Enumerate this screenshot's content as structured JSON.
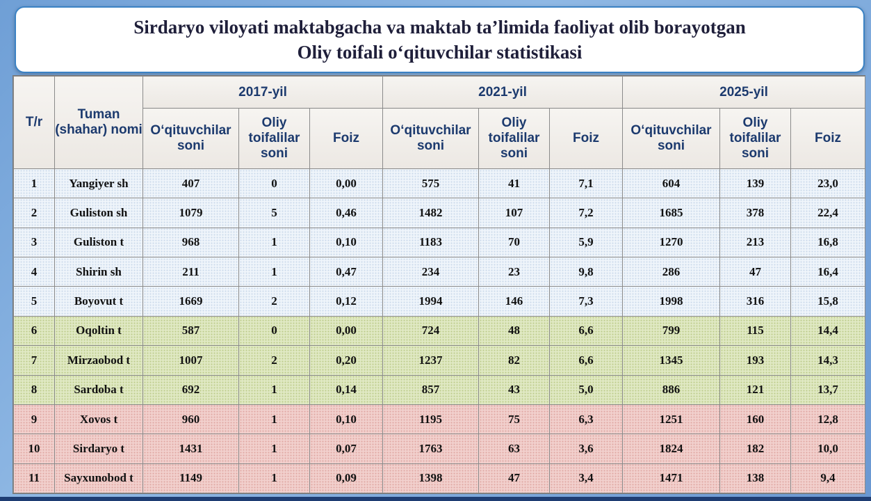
{
  "title": {
    "line1": "Sirdaryo viloyati maktabgacha va maktab ta’limida faoliyat olib borayotgan",
    "line2": "Oliy toifali o‘qituvchilar statistikasi"
  },
  "table": {
    "headers": {
      "tr": "T/r",
      "district": "Tuman (shahar) nomi",
      "years": [
        "2017-yil",
        "2021-yil",
        "2025-yil"
      ],
      "sub": [
        "O‘qituvchilar soni",
        "Oliy toifalilar soni",
        "Foiz"
      ]
    },
    "rows": [
      {
        "n": "1",
        "name": "Yangiyer sh",
        "group": "blue",
        "y2017": [
          "407",
          "0",
          "0,00"
        ],
        "y2021": [
          "575",
          "41",
          "7,1"
        ],
        "y2025": [
          "604",
          "139",
          "23,0"
        ]
      },
      {
        "n": "2",
        "name": "Guliston sh",
        "group": "blue",
        "y2017": [
          "1079",
          "5",
          "0,46"
        ],
        "y2021": [
          "1482",
          "107",
          "7,2"
        ],
        "y2025": [
          "1685",
          "378",
          "22,4"
        ]
      },
      {
        "n": "3",
        "name": "Guliston t",
        "group": "blue",
        "y2017": [
          "968",
          "1",
          "0,10"
        ],
        "y2021": [
          "1183",
          "70",
          "5,9"
        ],
        "y2025": [
          "1270",
          "213",
          "16,8"
        ]
      },
      {
        "n": "4",
        "name": "Shirin sh",
        "group": "blue",
        "y2017": [
          "211",
          "1",
          "0,47"
        ],
        "y2021": [
          "234",
          "23",
          "9,8"
        ],
        "y2025": [
          "286",
          "47",
          "16,4"
        ]
      },
      {
        "n": "5",
        "name": "Boyovut t",
        "group": "blue",
        "y2017": [
          "1669",
          "2",
          "0,12"
        ],
        "y2021": [
          "1994",
          "146",
          "7,3"
        ],
        "y2025": [
          "1998",
          "316",
          "15,8"
        ]
      },
      {
        "n": "6",
        "name": "Oqoltin t",
        "group": "green",
        "y2017": [
          "587",
          "0",
          "0,00"
        ],
        "y2021": [
          "724",
          "48",
          "6,6"
        ],
        "y2025": [
          "799",
          "115",
          "14,4"
        ]
      },
      {
        "n": "7",
        "name": "Mirzaobod t",
        "group": "green",
        "y2017": [
          "1007",
          "2",
          "0,20"
        ],
        "y2021": [
          "1237",
          "82",
          "6,6"
        ],
        "y2025": [
          "1345",
          "193",
          "14,3"
        ]
      },
      {
        "n": "8",
        "name": "Sardoba t",
        "group": "green",
        "y2017": [
          "692",
          "1",
          "0,14"
        ],
        "y2021": [
          "857",
          "43",
          "5,0"
        ],
        "y2025": [
          "886",
          "121",
          "13,7"
        ]
      },
      {
        "n": "9",
        "name": "Xovos t",
        "group": "red",
        "y2017": [
          "960",
          "1",
          "0,10"
        ],
        "y2021": [
          "1195",
          "75",
          "6,3"
        ],
        "y2025": [
          "1251",
          "160",
          "12,8"
        ]
      },
      {
        "n": "10",
        "name": "Sirdaryo t",
        "group": "red",
        "y2017": [
          "1431",
          "1",
          "0,07"
        ],
        "y2021": [
          "1763",
          "63",
          "3,6"
        ],
        "y2025": [
          "1824",
          "182",
          "10,0"
        ]
      },
      {
        "n": "11",
        "name": "Sayxunobod t",
        "group": "red",
        "y2017": [
          "1149",
          "1",
          "0,09"
        ],
        "y2021": [
          "1398",
          "47",
          "3,4"
        ],
        "y2025": [
          "1471",
          "138",
          "9,4"
        ]
      }
    ]
  },
  "colors": {
    "header_text": "#1c3a6e",
    "title_border": "#3b82c4",
    "group_blue": "#eef4fa",
    "group_green": "#dfe8c2",
    "group_red": "#f1cfcc"
  }
}
